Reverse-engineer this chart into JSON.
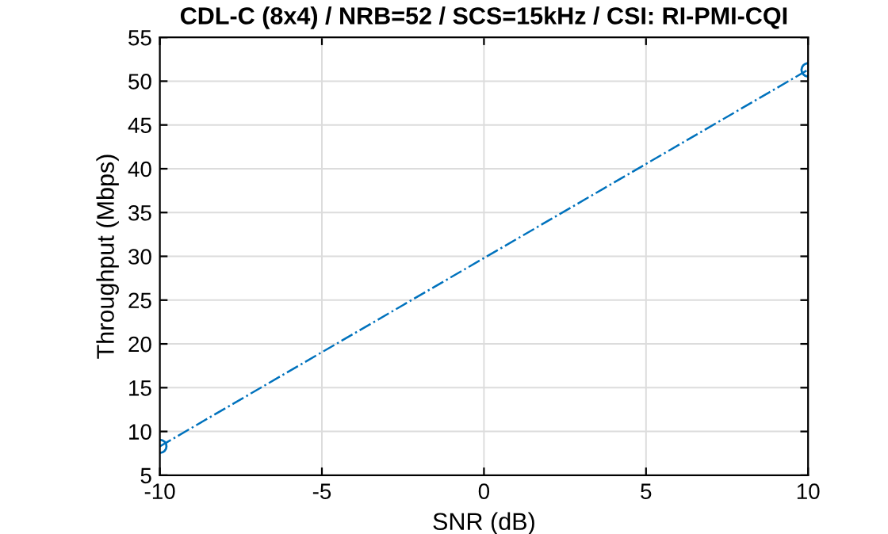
{
  "chart_data": {
    "type": "line",
    "title": "CDL-C (8x4) / NRB=52 / SCS=15kHz / CSI: RI-PMI-CQI",
    "xlabel": "SNR (dB)",
    "ylabel": "Throughput (Mbps)",
    "x": [
      -10,
      10
    ],
    "series": [
      {
        "color": "#0072bd",
        "values": [
          8.3,
          51.3
        ]
      }
    ],
    "xlim": [
      -10,
      10
    ],
    "xticks": [
      -10,
      -5,
      0,
      5,
      10
    ],
    "ylim": [
      5,
      55
    ],
    "yticks": [
      5,
      10,
      15,
      20,
      25,
      30,
      35,
      40,
      45,
      50,
      55
    ],
    "grid": true,
    "marker": "circle",
    "line_style": "dashdot"
  }
}
